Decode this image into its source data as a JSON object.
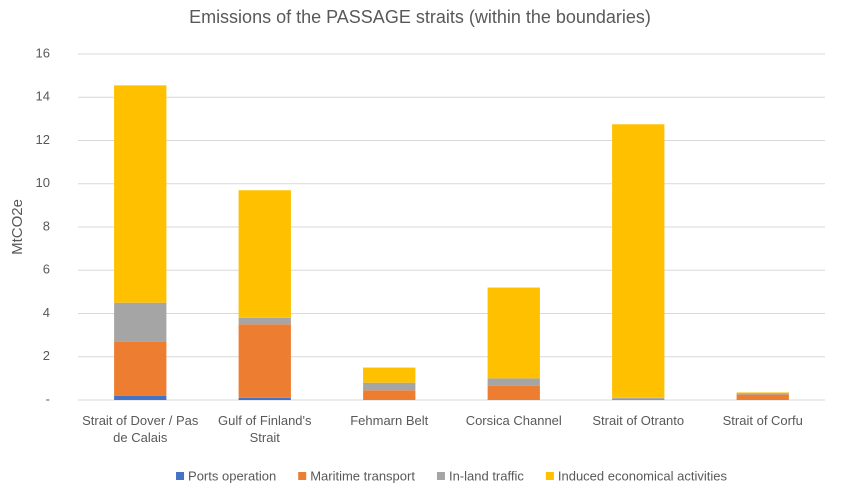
{
  "chart_data": {
    "type": "stacked_bar",
    "title": "Emissions of the PASSAGE straits (within the boundaries)",
    "y_label": "MtCO2e",
    "categories": [
      "Strait of Dover / Pas de Calais",
      "Gulf of Finland's Strait",
      "Fehmarn Belt",
      "Corsica Channel",
      "Strait of Otranto",
      "Strait of Corfu"
    ],
    "series": [
      {
        "name": "Ports operation",
        "color": "#4472c4",
        "values": [
          0.2,
          0.1,
          0,
          0,
          0,
          0
        ]
      },
      {
        "name": "Maritime transport",
        "color": "#ed7d31",
        "values": [
          2.5,
          3.4,
          0.45,
          0.65,
          0.05,
          0.25
        ]
      },
      {
        "name": "In-land traffic",
        "color": "#a5a5a5",
        "values": [
          1.8,
          0.3,
          0.35,
          0.35,
          0.05,
          0.05
        ]
      },
      {
        "name": "Induced economical activities",
        "color": "#ffc000",
        "values": [
          10.05,
          5.9,
          0.7,
          4.2,
          12.65,
          0.05
        ]
      }
    ],
    "ylim": [
      0,
      16
    ],
    "yticks": [
      {
        "value": 0,
        "label": "-"
      },
      2,
      4,
      6,
      8,
      10,
      12,
      14,
      16
    ],
    "grid": true,
    "legend": "bottom"
  }
}
